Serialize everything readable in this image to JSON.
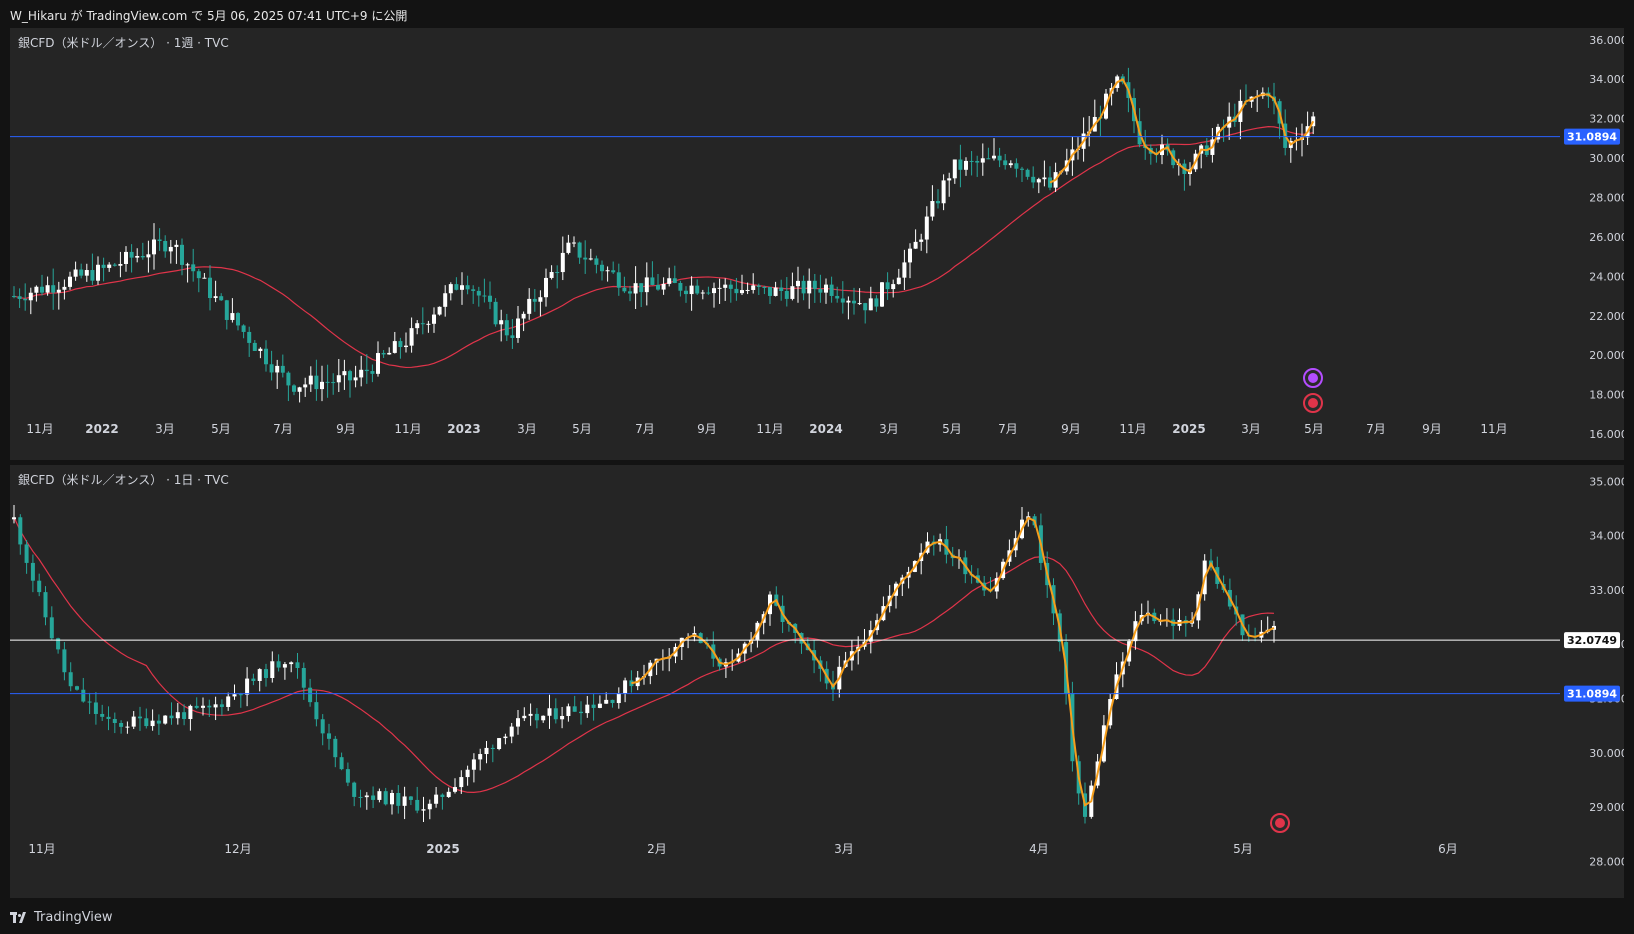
{
  "header": {
    "published_text": "W_Hikaru が TradingView.com で 5月 06, 2025 07:41 UTC+9 に公開"
  },
  "footer": {
    "brand": "TradingView"
  },
  "colors": {
    "background": "#252525",
    "up_candle": "#ffffff",
    "down_candle": "#26a69a",
    "ma_line": "#e0344a",
    "swing_line": "#f59e1b",
    "blue_line": "#2962ff"
  },
  "panes": [
    {
      "legend": "銀CFD（米ドル／オンス） · 1週 · TVC"
    },
    {
      "legend": "銀CFD（米ドル／オンス） · 1日 · TVC"
    }
  ],
  "chart_data": [
    {
      "type": "candlestick",
      "title": "銀CFD（米ドル／オンス） · 1週 · TVC",
      "x_tick_labels": [
        "11月",
        "2022",
        "3月",
        "5月",
        "7月",
        "9月",
        "11月",
        "2023",
        "3月",
        "5月",
        "7月",
        "9月",
        "11月",
        "2024",
        "3月",
        "5月",
        "7月",
        "9月",
        "11月",
        "2025",
        "3月",
        "5月",
        "7月",
        "9月",
        "11月"
      ],
      "y_tick_labels": [
        "36.0000",
        "34.0000",
        "32.0000",
        "30.0000",
        "28.0000",
        "26.0000",
        "24.0000",
        "22.0000",
        "20.0000",
        "18.0000",
        "16.0000"
      ],
      "ylim": [
        15.9,
        36.6
      ],
      "horizontal_lines": [
        {
          "value": 31.0894,
          "label": "31.0894",
          "color": "#2962ff"
        }
      ],
      "approx_weekly_close_path": [
        {
          "x": "11月",
          "y": 23.0
        },
        {
          "x": "2022",
          "y": 24.3
        },
        {
          "x": "3月",
          "y": 25.8
        },
        {
          "x": "5月",
          "y": 22.0
        },
        {
          "x": "7月",
          "y": 18.5
        },
        {
          "x": "9月",
          "y": 18.8
        },
        {
          "x": "11月",
          "y": 20.8
        },
        {
          "x": "2023",
          "y": 24.0
        },
        {
          "x": "3月",
          "y": 21.0
        },
        {
          "x": "5月",
          "y": 25.5
        },
        {
          "x": "7月",
          "y": 23.5
        },
        {
          "x": "9月",
          "y": 23.5
        },
        {
          "x": "11月",
          "y": 23.2
        },
        {
          "x": "2024",
          "y": 23.5
        },
        {
          "x": "3月",
          "y": 22.5
        },
        {
          "x": "5月",
          "y": 29.5
        },
        {
          "x": "7月",
          "y": 30.0
        },
        {
          "x": "9月",
          "y": 29.0
        },
        {
          "x": "11月",
          "y": 33.5
        },
        {
          "x": "2025",
          "y": 29.5
        },
        {
          "x": "3月",
          "y": 32.5
        },
        {
          "x": "5月",
          "y": 32.1
        }
      ]
    },
    {
      "type": "candlestick",
      "title": "銀CFD（米ドル／オンス） · 1日 · TVC",
      "x_tick_labels": [
        "11月",
        "12月",
        "2025",
        "2月",
        "3月",
        "4月",
        "5月",
        "6月"
      ],
      "y_tick_labels": [
        "35.0000",
        "34.0000",
        "33.0000",
        "32.0000",
        "31.0000",
        "30.0000",
        "29.0000",
        "28.0000"
      ],
      "ylim": [
        27.75,
        35.3
      ],
      "horizontal_lines": [
        {
          "value": 32.0749,
          "label": "32.0749",
          "color": "#ffffff"
        },
        {
          "value": 31.0894,
          "label": "31.0894",
          "color": "#2962ff"
        }
      ],
      "approx_daily_close_path": [
        {
          "x": "11月",
          "y": 34.3
        },
        {
          "x": "11月",
          "y": 32.8
        },
        {
          "x": "11月",
          "y": 31.2
        },
        {
          "x": "12月",
          "y": 30.3
        },
        {
          "x": "12月",
          "y": 31.3
        },
        {
          "x": "12月",
          "y": 29.1
        },
        {
          "x": "2025",
          "y": 29.0
        },
        {
          "x": "2025",
          "y": 30.5
        },
        {
          "x": "2月",
          "y": 31.5
        },
        {
          "x": "2月",
          "y": 32.3
        },
        {
          "x": "3月",
          "y": 31.2
        },
        {
          "x": "3月",
          "y": 32.6
        },
        {
          "x": "3月",
          "y": 34.0
        },
        {
          "x": "4月",
          "y": 34.5
        },
        {
          "x": "4月",
          "y": 29.8
        },
        {
          "x": "4月",
          "y": 28.9
        },
        {
          "x": "4月",
          "y": 32.2
        },
        {
          "x": "4月",
          "y": 32.9
        },
        {
          "x": "5月",
          "y": 32.0
        },
        {
          "x": "5月",
          "y": 32.4
        }
      ]
    }
  ]
}
